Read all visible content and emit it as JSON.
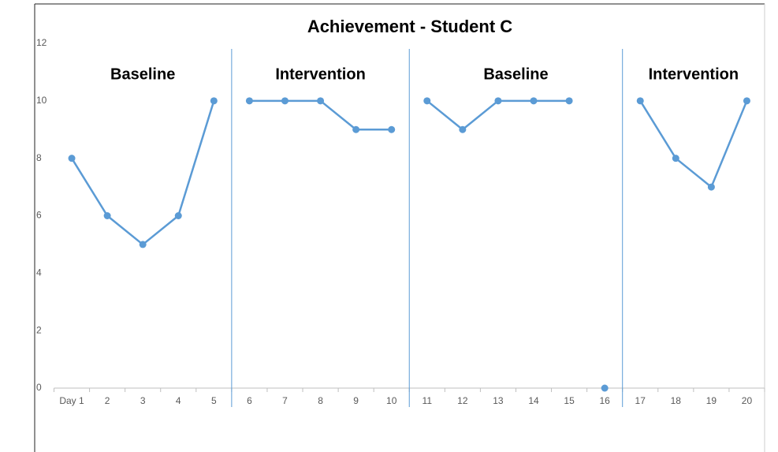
{
  "chart_data": {
    "type": "line",
    "title": "Achievement - Student C",
    "categories": [
      "Day 1",
      "2",
      "3",
      "4",
      "5",
      "6",
      "7",
      "8",
      "9",
      "10",
      "11",
      "12",
      "13",
      "14",
      "15",
      "16",
      "17",
      "18",
      "19",
      "20"
    ],
    "color": "#5b9bd5",
    "series": [
      {
        "values": [
          8,
          6,
          5,
          6,
          10,
          null,
          null,
          null,
          null,
          null,
          null,
          null,
          null,
          null,
          null,
          null,
          null,
          null,
          null,
          null
        ]
      },
      {
        "values": [
          null,
          null,
          null,
          null,
          null,
          10,
          10,
          10,
          9,
          9,
          null,
          null,
          null,
          null,
          null,
          null,
          null,
          null,
          null,
          null
        ]
      },
      {
        "values": [
          null,
          null,
          null,
          null,
          null,
          null,
          null,
          null,
          null,
          null,
          10,
          9,
          10,
          10,
          10,
          null,
          null,
          null,
          null,
          null
        ]
      },
      {
        "values": [
          null,
          null,
          null,
          null,
          null,
          null,
          null,
          null,
          null,
          null,
          null,
          null,
          null,
          null,
          null,
          0,
          null,
          null,
          null,
          null
        ]
      },
      {
        "values": [
          null,
          null,
          null,
          null,
          null,
          null,
          null,
          null,
          null,
          null,
          null,
          null,
          null,
          null,
          null,
          null,
          10,
          8,
          7,
          10
        ]
      }
    ],
    "phase_lines": [
      5.5,
      10.5,
      16.5
    ],
    "annotations": [
      "Baseline",
      "Intervention",
      "Baseline",
      "Intervention"
    ],
    "ylim": [
      0,
      12
    ],
    "yticks": [
      0,
      2,
      4,
      6,
      8,
      10,
      12
    ],
    "grid": false
  }
}
